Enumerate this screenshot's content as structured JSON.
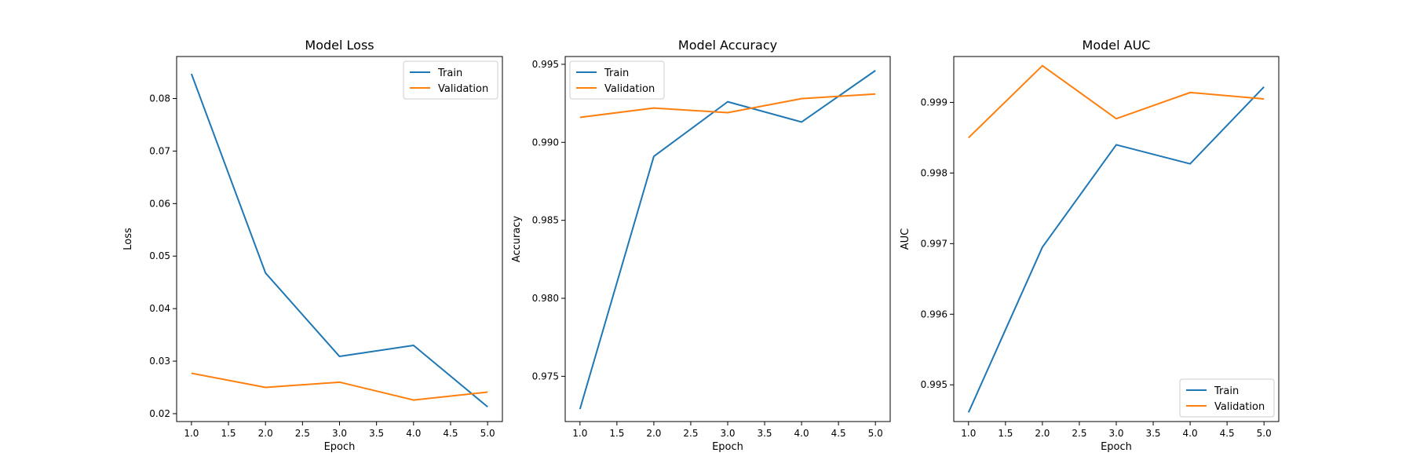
{
  "chart_data": [
    {
      "type": "line",
      "title": "Model Loss",
      "xlabel": "Epoch",
      "ylabel": "Loss",
      "x": [
        1,
        2,
        3,
        4,
        5
      ],
      "xlim": [
        0.8,
        5.2
      ],
      "ylim": [
        0.0185,
        0.088
      ],
      "xticks": [
        "1.0",
        "1.5",
        "2.0",
        "2.5",
        "3.0",
        "3.5",
        "4.0",
        "4.5",
        "5.0"
      ],
      "yticks": [
        "0.02",
        "0.03",
        "0.04",
        "0.05",
        "0.06",
        "0.07",
        "0.08"
      ],
      "legend_position": "upper right",
      "series": [
        {
          "name": "Train",
          "color": "#1f77b4",
          "values": [
            0.0847,
            0.0468,
            0.0309,
            0.033,
            0.0213
          ]
        },
        {
          "name": "Validation",
          "color": "#ff7f0e",
          "values": [
            0.0277,
            0.025,
            0.026,
            0.0226,
            0.0241
          ]
        }
      ],
      "grid": false
    },
    {
      "type": "line",
      "title": "Model Accuracy",
      "xlabel": "Epoch",
      "ylabel": "Accuracy",
      "x": [
        1,
        2,
        3,
        4,
        5
      ],
      "xlim": [
        0.8,
        5.2
      ],
      "ylim": [
        0.9721,
        0.9955
      ],
      "xticks": [
        "1.0",
        "1.5",
        "2.0",
        "2.5",
        "3.0",
        "3.5",
        "4.0",
        "4.5",
        "5.0"
      ],
      "yticks": [
        "0.975",
        "0.980",
        "0.985",
        "0.990",
        "0.995"
      ],
      "legend_position": "upper left",
      "series": [
        {
          "name": "Train",
          "color": "#1f77b4",
          "values": [
            0.9729,
            0.9891,
            0.9926,
            0.9913,
            0.9946
          ]
        },
        {
          "name": "Validation",
          "color": "#ff7f0e",
          "values": [
            0.9916,
            0.9922,
            0.9919,
            0.9928,
            0.9931
          ]
        }
      ],
      "grid": false
    },
    {
      "type": "line",
      "title": "Model AUC",
      "xlabel": "Epoch",
      "ylabel": "AUC",
      "x": [
        1,
        2,
        3,
        4,
        5
      ],
      "xlim": [
        0.8,
        5.2
      ],
      "ylim": [
        0.99448,
        0.99965
      ],
      "xticks": [
        "1.0",
        "1.5",
        "2.0",
        "2.5",
        "3.0",
        "3.5",
        "4.0",
        "4.5",
        "5.0"
      ],
      "yticks": [
        "0.995",
        "0.996",
        "0.997",
        "0.998",
        "0.999"
      ],
      "legend_position": "lower right",
      "series": [
        {
          "name": "Train",
          "color": "#1f77b4",
          "values": [
            0.99461,
            0.99695,
            0.9984,
            0.99813,
            0.99922
          ]
        },
        {
          "name": "Validation",
          "color": "#ff7f0e",
          "values": [
            0.9985,
            0.99952,
            0.99877,
            0.99914,
            0.99905
          ]
        }
      ],
      "grid": false
    }
  ]
}
